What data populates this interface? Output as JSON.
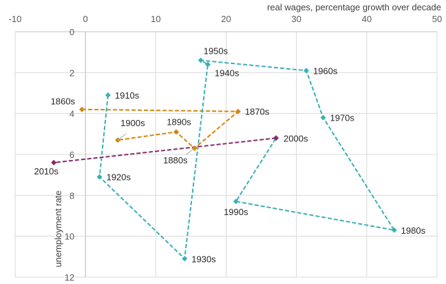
{
  "chart_data": {
    "type": "scatter",
    "title": "",
    "xlabel": "real wages, percentage growth over decade",
    "ylabel": "unemployment rate",
    "xlim": [
      -10,
      50
    ],
    "ylim": [
      0,
      12
    ],
    "y_reversed": true,
    "x_axis_position": "top",
    "grid": {
      "vertical": true,
      "horizontal": true
    },
    "x_ticks": [
      "-10",
      "0",
      "10",
      "20",
      "30",
      "40",
      "50"
    ],
    "y_ticks": [
      "0",
      "2",
      "4",
      "6",
      "8",
      "10",
      "12"
    ],
    "line_style": "dashed",
    "legend": "none",
    "series": [
      {
        "color": "#D4860B",
        "points": [
          {
            "label": "1860s",
            "x": -0.5,
            "y": 3.8
          },
          {
            "label": "1870s",
            "x": 21.7,
            "y": 3.9
          },
          {
            "label": "1880s",
            "x": 15.5,
            "y": 5.7
          },
          {
            "label": "1890s",
            "x": 12.9,
            "y": 4.9
          },
          {
            "label": "1900s",
            "x": 4.6,
            "y": 5.3
          }
        ]
      },
      {
        "color": "#3CAFB6",
        "points": [
          {
            "label": "1910s",
            "x": 3.2,
            "y": 3.1
          },
          {
            "label": "1920s",
            "x": 2.0,
            "y": 7.1
          },
          {
            "label": "1930s",
            "x": 14.1,
            "y": 11.1
          },
          {
            "label": "1940s",
            "x": 17.4,
            "y": 1.6
          },
          {
            "label": "1950s",
            "x": 16.4,
            "y": 1.4
          },
          {
            "label": "1960s",
            "x": 31.4,
            "y": 1.9
          },
          {
            "label": "1970s",
            "x": 33.8,
            "y": 4.2
          },
          {
            "label": "1980s",
            "x": 43.9,
            "y": 9.7
          },
          {
            "label": "1990s",
            "x": 21.4,
            "y": 8.3
          },
          {
            "label": "2000s",
            "x": 27.1,
            "y": 5.2
          }
        ]
      },
      {
        "color": "#862A6A",
        "points": [
          {
            "label": "2000s",
            "x": 27.1,
            "y": 5.2
          },
          {
            "label": "2010s",
            "x": -4.5,
            "y": 6.4
          }
        ]
      }
    ]
  }
}
